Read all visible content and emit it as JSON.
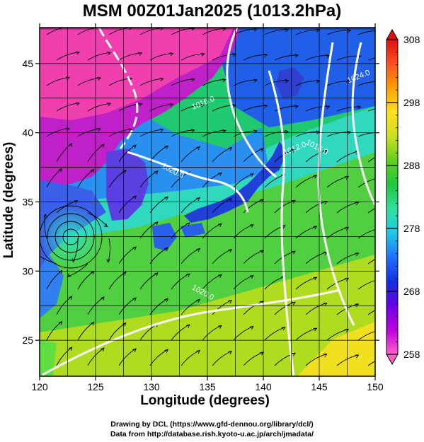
{
  "title": "MSM 00Z01Jan2025 (1013.2hPa)",
  "chart_data": {
    "type": "heatmap",
    "description_fields": "temperature shading with white isobars and black streamlines",
    "title": "MSM 00Z01Jan2025 (1013.2hPa)",
    "xlabel": "Longitude (degrees)",
    "ylabel": "Latitude (degrees)",
    "xlim": [
      120,
      150
    ],
    "ylim": [
      22.4,
      47.6
    ],
    "x_ticks": [
      120,
      125,
      130,
      135,
      140,
      145,
      150
    ],
    "y_ticks": [
      25,
      30,
      35,
      40,
      45
    ],
    "grid": true,
    "colorbar": {
      "min": 258,
      "max": 308,
      "ticks": [
        258,
        268,
        278,
        288,
        298,
        308
      ],
      "colors": [
        "#ff60c8",
        "#c000e0",
        "#6a00e8",
        "#1030e0",
        "#2070ff",
        "#20c8e8",
        "#30e0a0",
        "#20c840",
        "#60d020",
        "#c8e020",
        "#ffe020",
        "#ffa000",
        "#ff5020",
        "#e01010"
      ]
    },
    "isobar_labels": [
      {
        "text": "1016.0",
        "lon": 134.7,
        "lat": 42.0
      },
      {
        "text": "1020.0",
        "lon": 131.8,
        "lat": 37.1
      },
      {
        "text": "1012.0",
        "lon": 142.9,
        "lat": 38.7
      },
      {
        "text": "1016.0",
        "lon": 144.7,
        "lat": 38.8
      },
      {
        "text": "1024.0",
        "lon": 148.6,
        "lat": 43.9
      },
      {
        "text": "1020.0",
        "lon": 134.5,
        "lat": 28.3
      }
    ]
  },
  "credits": {
    "line1": "Drawing by DCL (https://www.gfd-dennou.org/library/dcl/)",
    "line2": "Data from http://database.rish.kyoto-u.ac.jp/arch/jmadata/"
  }
}
